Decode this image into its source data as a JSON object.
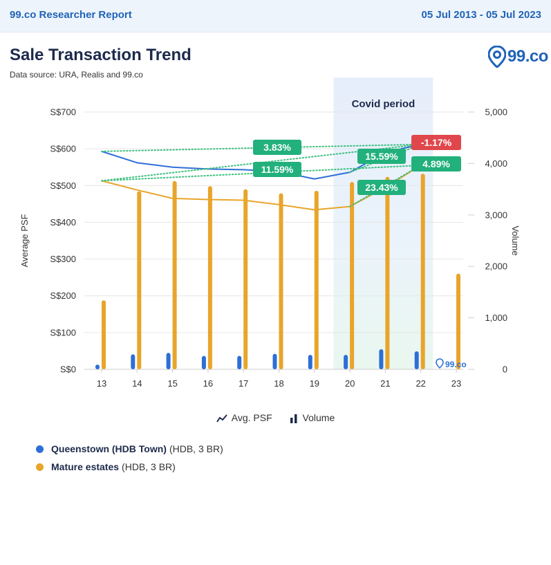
{
  "header": {
    "report_title": "99.co Researcher Report",
    "date_range": "05 Jul 2013 - 05 Jul 2023"
  },
  "logo_text": "99.co",
  "chart_data": {
    "type": "bar",
    "title": "Sale Transaction Trend",
    "subtitle": "Data source: URA, Realis and 99.co",
    "categories": [
      "13",
      "14",
      "15",
      "16",
      "17",
      "18",
      "19",
      "20",
      "21",
      "22",
      "23"
    ],
    "y_left": {
      "label": "Average PSF",
      "range": [
        0,
        700
      ],
      "ticks": [
        "S$0",
        "S$100",
        "S$200",
        "S$300",
        "S$400",
        "S$500",
        "S$600",
        "S$700"
      ],
      "values": [
        0,
        100,
        200,
        300,
        400,
        500,
        600,
        700
      ]
    },
    "y_right": {
      "label": "Volume",
      "range": [
        0,
        5000
      ],
      "ticks": [
        "0",
        "1,000",
        "2,000",
        "3,000",
        "4,000",
        "5,000"
      ],
      "values": [
        0,
        1000,
        2000,
        3000,
        4000,
        5000
      ]
    },
    "series": [
      {
        "name": "Queenstown (HDB Town)",
        "detail": "(HDB, 3 BR)",
        "color": "#2e6fd6",
        "volume": [
          90,
          290,
          320,
          260,
          260,
          300,
          280,
          280,
          390,
          350,
          null
        ],
        "avg_psf": [
          593,
          562,
          550,
          545,
          543,
          538,
          518,
          536,
          590,
          612,
          null
        ]
      },
      {
        "name": "Mature estates",
        "detail": "(HDB, 3 BR)",
        "color": "#e8a52a",
        "volume": [
          1340,
          3460,
          3660,
          3560,
          3500,
          3420,
          3470,
          3640,
          3740,
          3800,
          1860
        ],
        "avg_psf": [
          513,
          488,
          465,
          462,
          460,
          448,
          434,
          443,
          495,
          555,
          null
        ]
      }
    ],
    "shaded_period": {
      "label": "Covid period",
      "from": "20",
      "to": "22"
    },
    "annotations": [
      {
        "text": "3.83%",
        "color": "#22b07d"
      },
      {
        "text": "11.59%",
        "color": "#22b07d"
      },
      {
        "text": "15.59%",
        "color": "#22b07d"
      },
      {
        "text": "-1.17%",
        "color": "#e0474c"
      },
      {
        "text": "4.89%",
        "color": "#22b07d"
      },
      {
        "text": "23.43%",
        "color": "#22b07d"
      }
    ],
    "legend": [
      "Avg. PSF",
      "Volume"
    ],
    "watermark": "99.co"
  }
}
